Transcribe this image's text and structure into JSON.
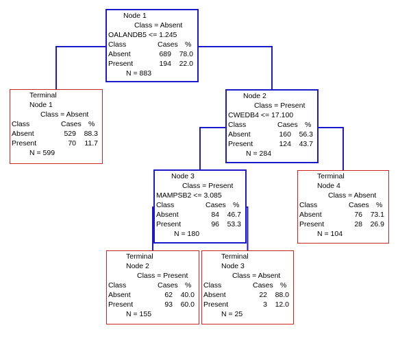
{
  "nodes": [
    {
      "id": "node-1",
      "kind": "split",
      "title_lines": [
        "Node 1",
        "Class = Absent"
      ],
      "split_rule": "OALANDB5 <= 1.245",
      "headers": {
        "class": "Class",
        "cases": "Cases",
        "pct": "%"
      },
      "rows": [
        {
          "label": "Absent",
          "cases": "689",
          "pct": "78.0"
        },
        {
          "label": "Present",
          "cases": "194",
          "pct": "22.0"
        }
      ],
      "total": "N = 883"
    },
    {
      "id": "terminal-1",
      "kind": "terminal",
      "title_lines": [
        "Terminal",
        "Node 1",
        "Class = Absent"
      ],
      "headers": {
        "class": "Class",
        "cases": "Cases",
        "pct": "%"
      },
      "rows": [
        {
          "label": "Absent",
          "cases": "529",
          "pct": "88.3"
        },
        {
          "label": "Present",
          "cases": "70",
          "pct": "11.7"
        }
      ],
      "total": "N = 599"
    },
    {
      "id": "node-2",
      "kind": "split",
      "title_lines": [
        "Node 2",
        "Class = Present"
      ],
      "split_rule": "CWEDB4 <= 17.100",
      "headers": {
        "class": "Class",
        "cases": "Cases",
        "pct": "%"
      },
      "rows": [
        {
          "label": "Absent",
          "cases": "160",
          "pct": "56.3"
        },
        {
          "label": "Present",
          "cases": "124",
          "pct": "43.7"
        }
      ],
      "total": "N = 284"
    },
    {
      "id": "node-3",
      "kind": "split",
      "title_lines": [
        "Node 3",
        "Class = Present"
      ],
      "split_rule": "MAMPSB2 <=  3.085",
      "headers": {
        "class": "Class",
        "cases": "Cases",
        "pct": "%"
      },
      "rows": [
        {
          "label": "Absent",
          "cases": "84",
          "pct": "46.7"
        },
        {
          "label": "Present",
          "cases": "96",
          "pct": "53.3"
        }
      ],
      "total": "N = 180"
    },
    {
      "id": "terminal-4",
      "kind": "terminal",
      "title_lines": [
        "Terminal",
        "Node 4",
        "Class = Absent"
      ],
      "headers": {
        "class": "Class",
        "cases": "Cases",
        "pct": "%"
      },
      "rows": [
        {
          "label": "Absent",
          "cases": "76",
          "pct": "73.1"
        },
        {
          "label": "Present",
          "cases": "28",
          "pct": "26.9"
        }
      ],
      "total": "N = 104"
    },
    {
      "id": "terminal-2",
      "kind": "terminal",
      "title_lines": [
        "Terminal",
        "Node 2",
        "Class = Present"
      ],
      "headers": {
        "class": "Class",
        "cases": "Cases",
        "pct": "%"
      },
      "rows": [
        {
          "label": "Absent",
          "cases": "62",
          "pct": "40.0"
        },
        {
          "label": "Present",
          "cases": "93",
          "pct": "60.0"
        }
      ],
      "total": "N = 155"
    },
    {
      "id": "terminal-3",
      "kind": "terminal",
      "title_lines": [
        "Terminal",
        "Node 3",
        "Class = Absent"
      ],
      "headers": {
        "class": "Class",
        "cases": "Cases",
        "pct": "%"
      },
      "rows": [
        {
          "label": "Absent",
          "cases": "22",
          "pct": "88.0"
        },
        {
          "label": "Present",
          "cases": "3",
          "pct": "12.0"
        }
      ],
      "total": "N = 25"
    }
  ],
  "edges": [
    {
      "from": "node-1",
      "to": "terminal-1"
    },
    {
      "from": "node-1",
      "to": "node-2"
    },
    {
      "from": "node-2",
      "to": "node-3"
    },
    {
      "from": "node-2",
      "to": "terminal-4"
    },
    {
      "from": "node-3",
      "to": "terminal-2"
    },
    {
      "from": "node-3",
      "to": "terminal-3"
    }
  ],
  "colors": {
    "split_border": "#1a1acc",
    "terminal_border": "#cc2222",
    "edge": "#1a1acc"
  }
}
